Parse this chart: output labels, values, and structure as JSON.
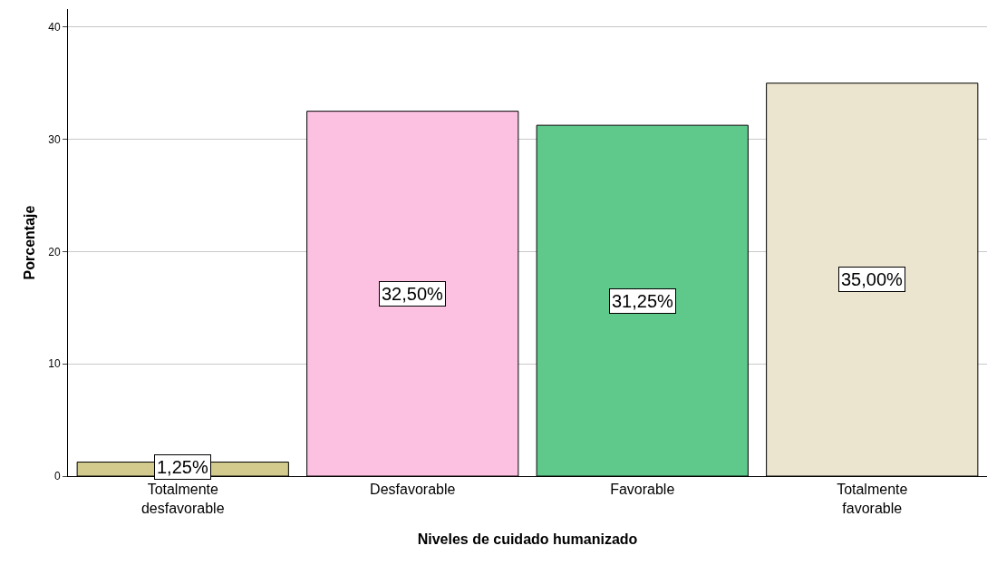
{
  "chart_data": {
    "type": "bar",
    "xlabel": "Niveles de cuidado humanizado",
    "ylabel": "Porcentaje",
    "categories": [
      "Totalmente desfavorable",
      "Desfavorable",
      "Favorable",
      "Totalmente favorable"
    ],
    "values": [
      1.25,
      32.5,
      31.25,
      35.0
    ],
    "colors": [
      "#d2cb8d",
      "#fcc1e0",
      "#5ec98b",
      "#ebe4cf"
    ],
    "value_labels": [
      "1,25%",
      "32,50%",
      "31,25%",
      "35,00%"
    ],
    "ylim": [
      0,
      41.6
    ],
    "yticks": [
      0,
      10,
      20,
      30,
      40
    ],
    "grid": "y"
  }
}
